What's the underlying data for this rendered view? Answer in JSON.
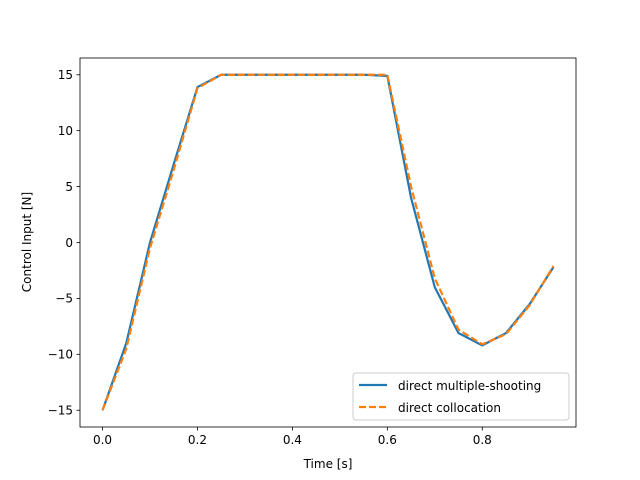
{
  "chart_data": {
    "type": "line",
    "title": "",
    "xlabel": "Time [s]",
    "ylabel": "Control Input [N]",
    "xlim": [
      -0.0475,
      0.9975
    ],
    "ylim": [
      -16.5,
      16.5
    ],
    "xticks": [
      0.0,
      0.2,
      0.4,
      0.6,
      0.8
    ],
    "xtick_labels": [
      "0.0",
      "0.2",
      "0.4",
      "0.6",
      "0.8"
    ],
    "yticks": [
      -15,
      -10,
      -5,
      0,
      5,
      10,
      15
    ],
    "ytick_labels": [
      "−15",
      "−10",
      "−5",
      "0",
      "5",
      "10",
      "15"
    ],
    "grid": false,
    "legend_position": "lower-right",
    "series": [
      {
        "name": "direct multiple-shooting",
        "color": "#1f77b4",
        "style": "solid",
        "x": [
          0.0,
          0.05,
          0.1,
          0.15,
          0.2,
          0.25,
          0.3,
          0.35,
          0.4,
          0.45,
          0.5,
          0.55,
          0.6,
          0.65,
          0.7,
          0.75,
          0.8,
          0.85,
          0.9,
          0.95
        ],
        "y": [
          -15.0,
          -9.0,
          0.0,
          7.0,
          13.9,
          15.0,
          15.0,
          15.0,
          15.0,
          15.0,
          15.0,
          15.0,
          14.9,
          4.0,
          -4.0,
          -8.1,
          -9.2,
          -8.1,
          -5.5,
          -2.2
        ]
      },
      {
        "name": "direct collocation",
        "color": "#ff7f0e",
        "style": "dashed",
        "x": [
          0.0,
          0.05,
          0.1,
          0.15,
          0.2,
          0.25,
          0.3,
          0.35,
          0.4,
          0.45,
          0.5,
          0.55,
          0.6,
          0.65,
          0.7,
          0.75,
          0.8,
          0.85,
          0.9,
          0.95
        ],
        "y": [
          -15.0,
          -9.5,
          -0.5,
          6.5,
          13.8,
          15.0,
          15.0,
          15.0,
          15.0,
          15.0,
          15.0,
          15.0,
          15.0,
          5.0,
          -3.2,
          -7.8,
          -9.1,
          -8.2,
          -5.6,
          -2.1
        ]
      }
    ]
  }
}
